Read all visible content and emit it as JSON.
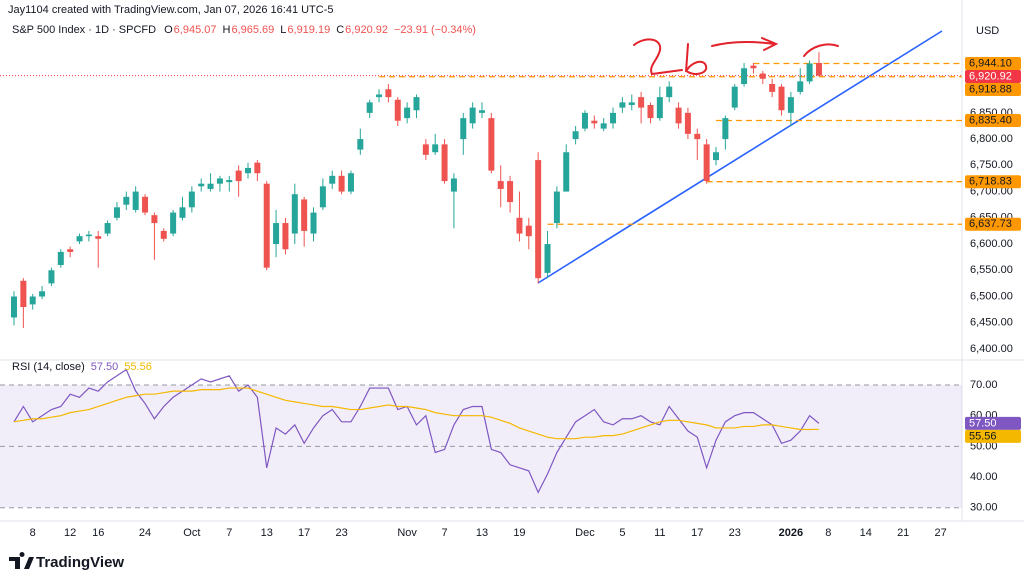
{
  "header": "Jay1104 created with TradingView.com, Jan 07, 2026 16:41 UTC-5",
  "brand": "TradingView",
  "chart_data": [
    {
      "type": "candlestick",
      "legend": {
        "symbol": "S&P 500 Index · 1D · SPCFD",
        "ohlc": [
          {
            "key": "O",
            "value": "6,945.07"
          },
          {
            "key": "H",
            "value": "6,965.69"
          },
          {
            "key": "L",
            "value": "6,919.19"
          },
          {
            "key": "C",
            "value": "6,920.92"
          }
        ],
        "change": "−23.91 (−0.34%)"
      },
      "axis_unit": "USD",
      "categories": [
        null,
        null,
        "8",
        null,
        null,
        null,
        "12",
        null,
        null,
        "16",
        null,
        null,
        null,
        null,
        "24",
        null,
        null,
        null,
        null,
        "Oct",
        null,
        null,
        null,
        "7",
        null,
        null,
        null,
        "13",
        null,
        null,
        null,
        "17",
        null,
        null,
        null,
        "23",
        null,
        null,
        null,
        null,
        null,
        null,
        "Nov",
        null,
        null,
        null,
        "7",
        null,
        null,
        null,
        "13",
        null,
        null,
        null,
        "19",
        null,
        null,
        null,
        null,
        null,
        null,
        "Dec",
        null,
        null,
        null,
        "5",
        null,
        null,
        null,
        "11",
        null,
        null,
        null,
        "17",
        null,
        null,
        null,
        "23",
        null,
        null,
        null,
        null,
        null,
        "2026",
        null,
        null,
        null,
        "8",
        null,
        null,
        null,
        "14",
        null,
        null,
        null,
        "21",
        null,
        null,
        null,
        "27",
        null,
        null
      ],
      "open": [
        6460,
        6530,
        6485,
        6500,
        6525,
        6560,
        6590,
        6605,
        6615,
        6615,
        6620,
        6650,
        6675,
        6665,
        6690,
        6655,
        6625,
        6620,
        6650,
        6670,
        6710,
        6705,
        6715,
        6718,
        6740,
        6735,
        6755,
        6715,
        6600,
        6640,
        6620,
        6685,
        6620,
        6670,
        6715,
        6730,
        6700,
        6780,
        6850,
        6880,
        6895,
        6875,
        6840,
        6855,
        6790,
        6775,
        6790,
        6700,
        6800,
        6830,
        6850,
        6840,
        6720,
        6720,
        6650,
        6635,
        6760,
        6545,
        6640,
        6700,
        6800,
        6820,
        6835,
        6820,
        6830,
        6860,
        6865,
        6880,
        6865,
        6840,
        6880,
        6860,
        6850,
        6810,
        6790,
        6760,
        6800,
        6860,
        6905,
        6940,
        6925,
        6905,
        6900,
        6850,
        6890,
        6910,
        6945.07,
        null,
        null,
        null,
        null,
        null,
        null,
        null,
        null,
        null,
        null,
        null,
        null,
        null,
        null,
        null
      ],
      "high": [
        6510,
        6535,
        6505,
        6520,
        6555,
        6590,
        6595,
        6620,
        6625,
        6625,
        6645,
        6680,
        6700,
        6710,
        6695,
        6660,
        6630,
        6665,
        6690,
        6710,
        6725,
        6735,
        6730,
        6730,
        6750,
        6755,
        6760,
        6720,
        6665,
        6650,
        6715,
        6690,
        6670,
        6725,
        6740,
        6740,
        6740,
        6820,
        6875,
        6895,
        6905,
        6880,
        6870,
        6885,
        6800,
        6810,
        6800,
        6735,
        6850,
        6870,
        6870,
        6850,
        6750,
        6730,
        6700,
        6650,
        6775,
        6625,
        6710,
        6790,
        6825,
        6855,
        6845,
        6840,
        6860,
        6880,
        6885,
        6890,
        6870,
        6900,
        6910,
        6870,
        6860,
        6820,
        6800,
        6785,
        6845,
        6905,
        6945,
        6945,
        6930,
        6915,
        6905,
        6890,
        6935,
        6950,
        6965.69,
        null,
        null,
        null,
        null,
        null,
        null,
        null,
        null,
        null,
        null,
        null,
        null,
        null,
        null,
        null
      ],
      "low": [
        6445,
        6440,
        6475,
        6495,
        6520,
        6555,
        6575,
        6600,
        6605,
        6555,
        6615,
        6645,
        6665,
        6660,
        6655,
        6570,
        6605,
        6615,
        6645,
        6660,
        6700,
        6700,
        6700,
        6700,
        6690,
        6725,
        6720,
        6550,
        6575,
        6580,
        6600,
        6595,
        6605,
        6665,
        6705,
        6695,
        6695,
        6770,
        6840,
        6870,
        6870,
        6825,
        6830,
        6840,
        6760,
        6770,
        6715,
        6630,
        6770,
        6820,
        6840,
        6735,
        6670,
        6660,
        6605,
        6590,
        6525,
        6535,
        6630,
        6700,
        6790,
        6815,
        6820,
        6815,
        6820,
        6850,
        6855,
        6830,
        6830,
        6835,
        6870,
        6820,
        6800,
        6760,
        6715,
        6750,
        6780,
        6855,
        6900,
        6925,
        6905,
        6880,
        6845,
        6825,
        6885,
        6905,
        6919.19,
        null,
        null,
        null,
        null,
        null,
        null,
        null,
        null,
        null,
        null,
        null,
        null,
        null,
        null,
        null
      ],
      "close": [
        6500,
        6480,
        6500,
        6510,
        6550,
        6585,
        6585,
        6615,
        6618,
        6610,
        6640,
        6670,
        6690,
        6700,
        6660,
        6640,
        6610,
        6660,
        6670,
        6700,
        6715,
        6715,
        6725,
        6722,
        6720,
        6745,
        6735,
        6555,
        6640,
        6590,
        6695,
        6625,
        6660,
        6710,
        6730,
        6700,
        6735,
        6800,
        6870,
        6885,
        6880,
        6835,
        6860,
        6880,
        6770,
        6790,
        6720,
        6725,
        6840,
        6860,
        6855,
        6740,
        6705,
        6680,
        6620,
        6615,
        6535,
        6600,
        6700,
        6775,
        6815,
        6850,
        6830,
        6830,
        6850,
        6870,
        6870,
        6860,
        6840,
        6880,
        6900,
        6830,
        6810,
        6800,
        6720,
        6775,
        6840,
        6900,
        6935,
        6935,
        6915,
        6890,
        6855,
        6880,
        6910,
        6944.1,
        6920.92,
        null,
        null,
        null,
        null,
        null,
        null,
        null,
        null,
        null,
        null,
        null,
        null,
        null,
        null,
        null
      ],
      "up_color": "#26a69a",
      "down_color": "#ef5350",
      "ylim": [
        6379,
        7027
      ],
      "yticks": [
        {
          "value": 6400,
          "label": "6,400.00"
        },
        {
          "value": 6450,
          "label": "6,450.00"
        },
        {
          "value": 6500,
          "label": "6,500.00"
        },
        {
          "value": 6550,
          "label": "6,550.00"
        },
        {
          "value": 6600,
          "label": "6,600.00"
        },
        {
          "value": 6650,
          "label": "6,650.00"
        },
        {
          "value": 6700,
          "label": "6,700.00"
        },
        {
          "value": 6750,
          "label": "6,750.00"
        },
        {
          "value": 6800,
          "label": "6,800.00"
        },
        {
          "value": 6850,
          "label": "6,850.00"
        }
      ],
      "level_color": "#ff9800",
      "levels": [
        {
          "value": 6944.1,
          "label": "6,944.10"
        },
        {
          "value": 6918.88,
          "label": "6,918.88"
        },
        {
          "value": 6835.4,
          "label": "6,835.40"
        },
        {
          "value": 6718.83,
          "label": "6,718.83"
        },
        {
          "value": 6637.73,
          "label": "6,637.73"
        }
      ],
      "last": {
        "value": 6920.92,
        "label": "6,920.92",
        "color": "#f23645"
      }
    },
    {
      "type": "line",
      "title": "RSI (14, close)",
      "ylim": [
        26,
        77.5
      ],
      "yticks": [
        {
          "value": 30,
          "label": "30.00"
        },
        {
          "value": 40,
          "label": "40.00"
        },
        {
          "value": 50,
          "label": "50.00"
        },
        {
          "value": 60,
          "label": "60.00"
        },
        {
          "value": 70,
          "label": "70.00"
        }
      ],
      "bands": [
        70,
        50,
        30
      ],
      "band_color": "#7e57c2",
      "series": [
        {
          "color": "#7e57c2",
          "last_label": "57.50",
          "values": [
            58,
            63,
            58,
            60,
            62,
            63,
            67,
            66,
            69,
            68,
            71,
            73,
            75,
            68,
            64,
            59,
            63,
            66,
            68,
            70,
            72,
            71,
            72,
            73,
            68,
            70,
            66,
            43,
            56,
            54,
            57,
            51,
            56,
            60,
            62,
            58,
            58,
            63,
            69,
            69,
            69,
            62,
            63,
            57,
            60,
            48,
            49,
            57,
            62,
            63,
            63,
            49,
            48,
            44,
            43,
            42,
            35,
            41,
            48,
            53,
            58,
            60,
            62,
            58,
            57,
            59,
            59,
            60,
            58,
            57,
            63,
            59,
            55,
            53,
            43,
            52,
            58,
            60,
            61,
            61,
            59,
            57,
            51,
            52,
            55,
            60,
            57.5,
            null,
            null,
            null,
            null,
            null,
            null,
            null,
            null,
            null,
            null,
            null,
            null,
            null,
            null,
            null
          ]
        },
        {
          "color": "#f5b800",
          "last_label": "55.56",
          "values": [
            58,
            58.5,
            59,
            59,
            59.5,
            60,
            61,
            61.5,
            62,
            63,
            64,
            65,
            66,
            66.5,
            67,
            67,
            67.5,
            68,
            68,
            68,
            68.5,
            68.5,
            68.5,
            69,
            69,
            69,
            68,
            67,
            66,
            65,
            64.5,
            64,
            63.5,
            63,
            63,
            62.5,
            62,
            62,
            62.5,
            63,
            63.5,
            63,
            63,
            62.5,
            62,
            61,
            60.5,
            60,
            60,
            60,
            60,
            59.5,
            58.5,
            57.5,
            56,
            55,
            54,
            53,
            52.5,
            52.5,
            52.5,
            53,
            53,
            53.5,
            53.5,
            54,
            55,
            56,
            57,
            58,
            58.5,
            58.5,
            58,
            57.5,
            57,
            56,
            56,
            56,
            56.5,
            56.5,
            57,
            57,
            56.5,
            56,
            55.5,
            55.5,
            55.56,
            null,
            null,
            null,
            null,
            null,
            null,
            null,
            null,
            null,
            null,
            null,
            null,
            null,
            null,
            null
          ]
        }
      ]
    }
  ]
}
